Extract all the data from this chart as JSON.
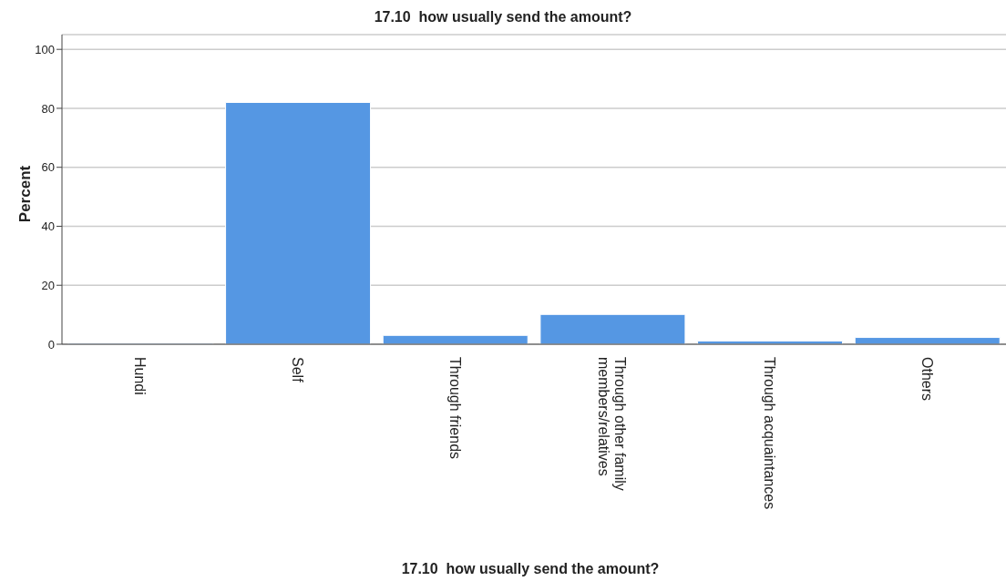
{
  "chart_data": {
    "type": "bar",
    "title": "17.10  how usually send the amount?",
    "xlabel": "17.10  how usually send the amount?",
    "ylabel": "Percent",
    "categories": [
      "Hundi",
      "Self",
      "Through friends",
      "Through other family members/relatives",
      "Through acquaintances",
      "Others"
    ],
    "values": [
      0.3,
      82,
      3.0,
      10.1,
      1.1,
      2.3
    ],
    "color": "#5597e3",
    "ylim": [
      0,
      105
    ],
    "yticks": [
      0,
      20,
      40,
      60,
      80,
      100
    ],
    "grid": "y"
  }
}
